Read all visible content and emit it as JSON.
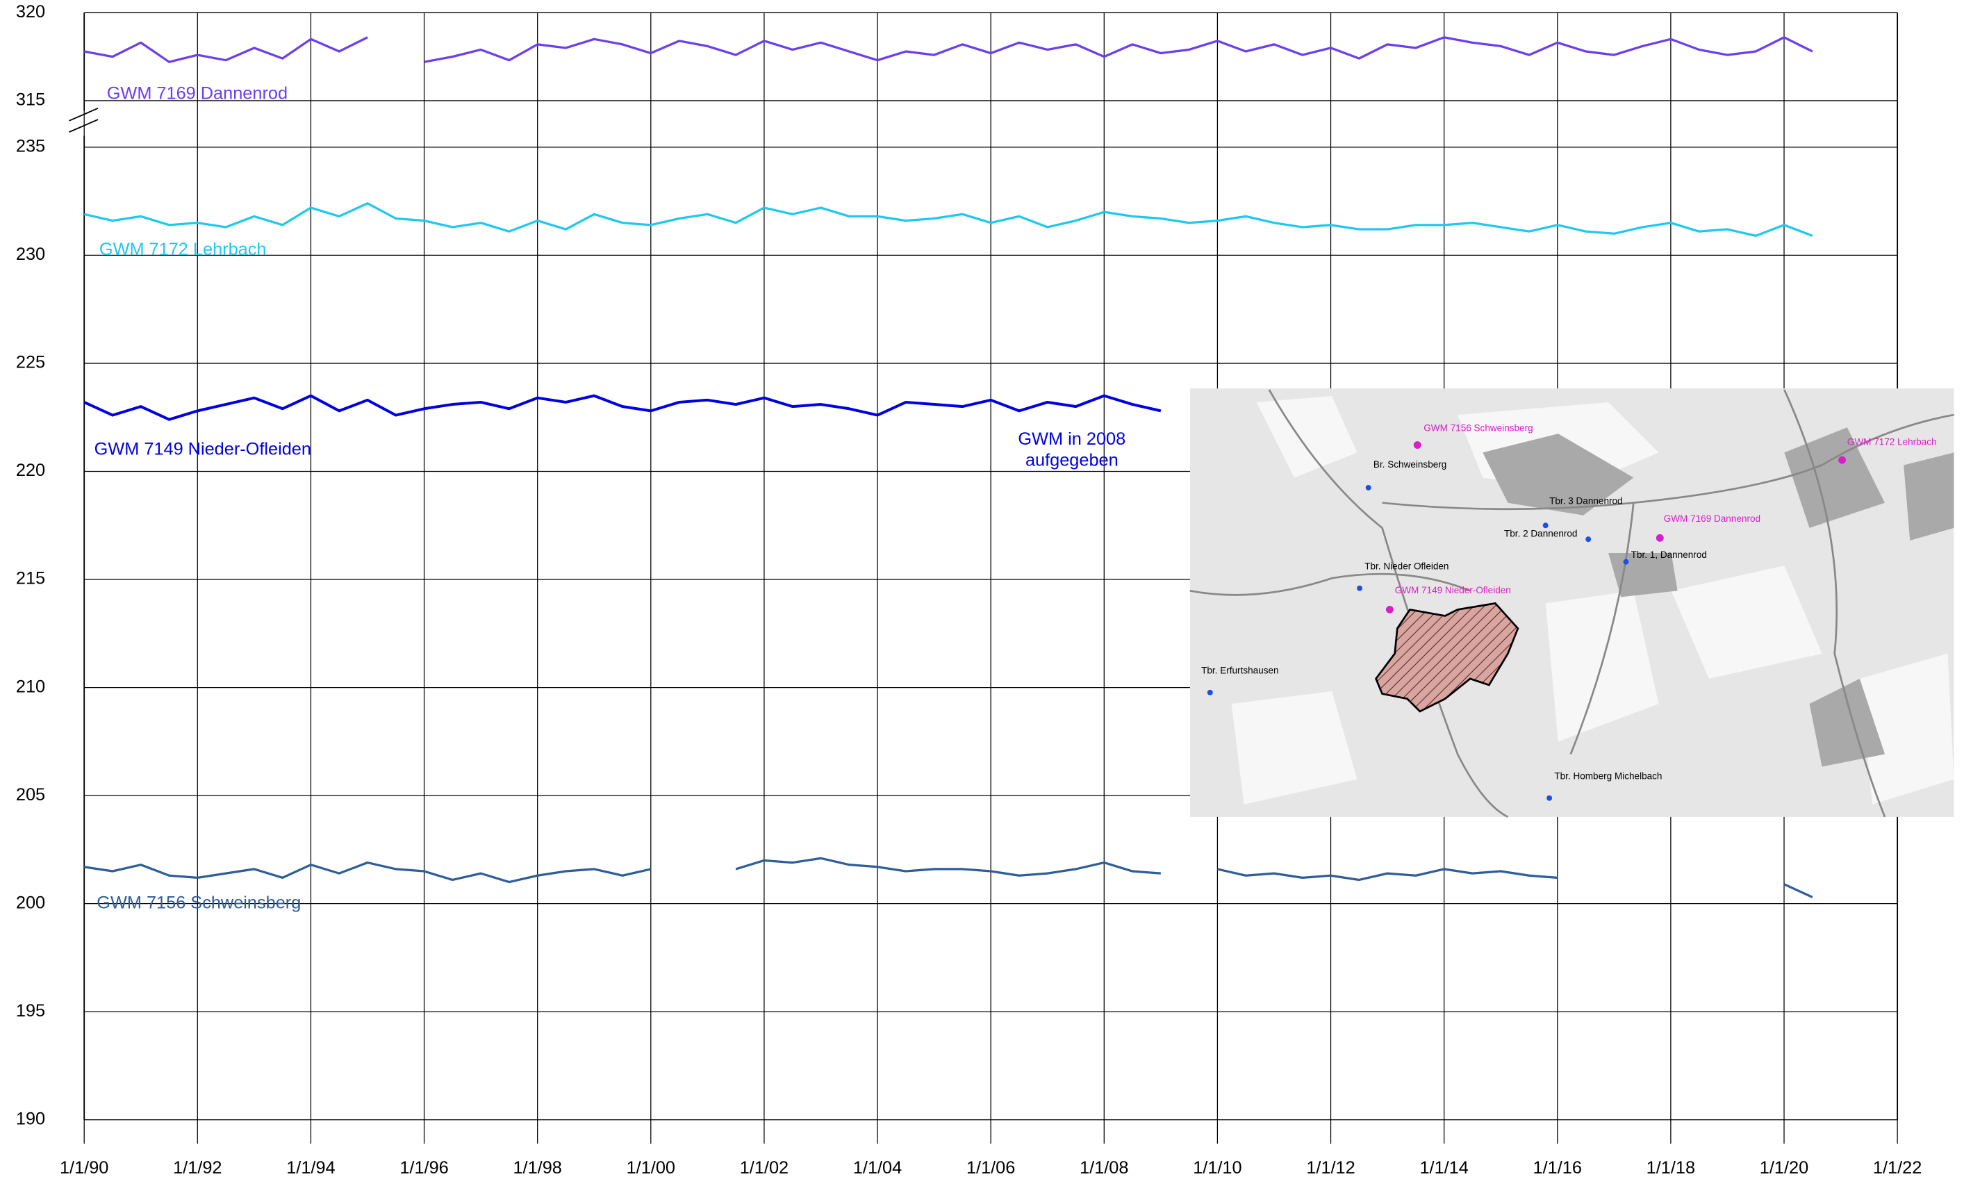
{
  "chart_data": {
    "type": "line",
    "annotation": [
      "GWM in 2008",
      "aufgegeben"
    ],
    "x": [
      1990,
      1990.5,
      1991,
      1991.5,
      1992,
      1992.5,
      1993,
      1993.5,
      1994,
      1994.5,
      1995,
      1995.5,
      1996,
      1996.5,
      1997,
      1997.5,
      1998,
      1998.5,
      1999,
      1999.5,
      2000,
      2000.5,
      2001,
      2001.5,
      2002,
      2002.5,
      2003,
      2003.5,
      2004,
      2004.5,
      2005,
      2005.5,
      2006,
      2006.5,
      2007,
      2007.5,
      2008,
      2008.5,
      2009,
      2009.5,
      2010,
      2010.5,
      2011,
      2011.5,
      2012,
      2012.5,
      2013,
      2013.5,
      2014,
      2014.5,
      2015,
      2015.5,
      2016,
      2016.5,
      2017,
      2017.5,
      2018,
      2018.5,
      2019,
      2019.5,
      2020,
      2020.5
    ],
    "xlim": [
      1990,
      2022
    ],
    "xticks": [
      {
        "value": 1990,
        "label": "1/1/90"
      },
      {
        "value": 1992,
        "label": "1/1/92"
      },
      {
        "value": 1994,
        "label": "1/1/94"
      },
      {
        "value": 1996,
        "label": "1/1/96"
      },
      {
        "value": 1998,
        "label": "1/1/98"
      },
      {
        "value": 2000,
        "label": "1/1/00"
      },
      {
        "value": 2002,
        "label": "1/1/02"
      },
      {
        "value": 2004,
        "label": "1/1/04"
      },
      {
        "value": 2006,
        "label": "1/1/06"
      },
      {
        "value": 2008,
        "label": "1/1/08"
      },
      {
        "value": 2010,
        "label": "1/1/10"
      },
      {
        "value": 2012,
        "label": "1/1/12"
      },
      {
        "value": 2014,
        "label": "1/1/14"
      },
      {
        "value": 2016,
        "label": "1/1/16"
      },
      {
        "value": 2018,
        "label": "1/1/18"
      },
      {
        "value": 2020,
        "label": "1/1/20"
      },
      {
        "value": 2022,
        "label": "1/1/22"
      }
    ],
    "ylim": [
      190,
      235
    ],
    "yticks": [
      190,
      195,
      200,
      205,
      210,
      215,
      220,
      225,
      230,
      235
    ],
    "y2lim": [
      315,
      320
    ],
    "y2ticks": [
      315,
      320
    ],
    "grid": true,
    "series": [
      {
        "name": "GWM 7169 Dannenrod",
        "color": "#6b3ff0",
        "axis": "y2",
        "values": [
          317.8,
          317.5,
          318.3,
          317.2,
          317.6,
          317.3,
          318.0,
          317.4,
          318.5,
          317.8,
          318.6,
          null,
          317.2,
          317.5,
          317.9,
          317.3,
          318.2,
          318.0,
          318.5,
          318.2,
          317.7,
          318.4,
          318.1,
          317.6,
          318.4,
          317.9,
          318.3,
          317.8,
          317.3,
          317.8,
          317.6,
          318.2,
          317.7,
          318.3,
          317.9,
          318.2,
          317.5,
          318.2,
          317.7,
          317.9,
          318.4,
          317.8,
          318.2,
          317.6,
          318.0,
          317.4,
          318.2,
          318.0,
          318.6,
          318.3,
          318.1,
          317.6,
          318.3,
          317.8,
          317.6,
          318.1,
          318.5,
          317.9,
          317.6,
          317.8,
          318.6,
          317.8
        ]
      },
      {
        "name": "GWM 7172 Lehrbach",
        "color": "#1ec8f0",
        "values": [
          231.9,
          231.6,
          231.8,
          231.4,
          231.5,
          231.3,
          231.8,
          231.4,
          232.2,
          231.8,
          232.4,
          231.7,
          231.6,
          231.3,
          231.5,
          231.1,
          231.6,
          231.2,
          231.9,
          231.5,
          231.4,
          231.7,
          231.9,
          231.5,
          232.2,
          231.9,
          232.2,
          231.8,
          231.8,
          231.6,
          231.7,
          231.9,
          231.5,
          231.8,
          231.3,
          231.6,
          232.0,
          231.8,
          231.7,
          231.5,
          231.6,
          231.8,
          231.5,
          231.3,
          231.4,
          231.2,
          231.2,
          231.4,
          231.4,
          231.5,
          231.3,
          231.1,
          231.4,
          231.1,
          231.0,
          231.3,
          231.5,
          231.1,
          231.2,
          230.9,
          231.4,
          230.9
        ]
      },
      {
        "name": "GWM 7149 Nieder-Ofleiden",
        "color": "#0000e0",
        "values": [
          223.2,
          222.6,
          223.0,
          222.4,
          222.8,
          223.1,
          223.4,
          222.9,
          223.5,
          222.8,
          223.3,
          222.6,
          222.9,
          223.1,
          223.2,
          222.9,
          223.4,
          223.2,
          223.5,
          223.0,
          222.8,
          223.2,
          223.3,
          223.1,
          223.4,
          223.0,
          223.1,
          222.9,
          222.6,
          223.2,
          223.1,
          223.0,
          223.3,
          222.8,
          223.2,
          223.0,
          223.5,
          223.1,
          222.8,
          null,
          null,
          null,
          null,
          null,
          null,
          null,
          null,
          null,
          null,
          null,
          null,
          null,
          null,
          null,
          null,
          null,
          null,
          null,
          null,
          null,
          null,
          null
        ]
      },
      {
        "name": "GWM 7156 Schweinsberg",
        "color": "#2e5e9a",
        "values": [
          201.7,
          201.5,
          201.8,
          201.3,
          201.2,
          201.4,
          201.6,
          201.2,
          201.8,
          201.4,
          201.9,
          201.6,
          201.5,
          201.1,
          201.4,
          201.0,
          201.3,
          201.5,
          201.6,
          201.3,
          201.6,
          null,
          null,
          201.6,
          202.0,
          201.9,
          202.1,
          201.8,
          201.7,
          201.5,
          201.6,
          201.6,
          201.5,
          201.3,
          201.4,
          201.6,
          201.9,
          201.5,
          201.4,
          null,
          201.6,
          201.3,
          201.4,
          201.2,
          201.3,
          201.1,
          201.4,
          201.3,
          201.6,
          201.4,
          201.5,
          201.3,
          201.2,
          null,
          null,
          null,
          null,
          null,
          null,
          null,
          200.9,
          200.3
        ]
      }
    ]
  },
  "map": {
    "labels": [
      "GWM 7156 Schweinsberg",
      "GWM 7172 Lehrbach",
      "Br. Schweinsberg",
      "Tbr. 3 Dannenrod",
      "GWM 7169 Dannenrod",
      "Tbr. 2  Dannenrod",
      "Tbr. 1, Dannenrod",
      "Tbr. Nieder Ofleiden",
      "GWM 7149 Nieder-Ofleiden",
      "Tbr. Erfurtshausen",
      "Tbr. Homberg Michelbach"
    ]
  }
}
